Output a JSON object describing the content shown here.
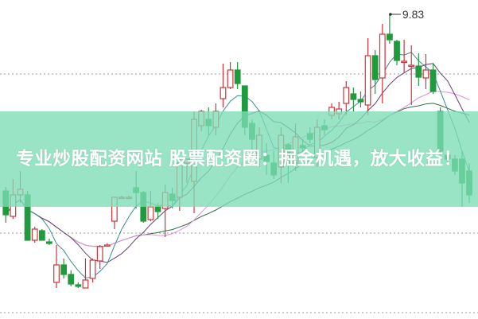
{
  "banner": {
    "title": "专业炒股配资网站 股票配资圈：掘金机遇，放大收益！"
  },
  "chart_data": {
    "type": "candlestick",
    "high_marker": "9.83",
    "colors": {
      "up": "#d0343a",
      "down": "#1f9a3c",
      "ma5": "#3b8c94",
      "ma10": "#6a3f72",
      "ma20": "#e08ee0",
      "ma30": "#2e6e3a"
    },
    "grid": "dotted horizontal",
    "candles": [
      [
        7.61,
        7.66,
        7.21,
        7.31
      ],
      [
        7.29,
        7.76,
        7.26,
        7.56
      ],
      [
        7.56,
        7.86,
        7.46,
        7.63
      ],
      [
        7.56,
        7.61,
        6.99,
        6.99
      ],
      [
        6.99,
        7.16,
        6.96,
        7.13
      ],
      [
        7.11,
        7.13,
        6.99,
        6.99
      ],
      [
        6.97,
        7.01,
        6.93,
        6.95
      ],
      [
        6.46,
        6.93,
        6.39,
        6.68
      ],
      [
        6.68,
        6.76,
        6.51,
        6.56
      ],
      [
        6.56,
        6.61,
        6.41,
        6.44
      ],
      [
        6.43,
        6.46,
        6.39,
        6.41
      ],
      [
        6.39,
        6.76,
        6.39,
        6.49
      ],
      [
        6.51,
        6.76,
        6.46,
        6.74
      ],
      [
        6.73,
        6.93,
        6.63,
        6.91
      ],
      [
        6.93,
        6.95,
        6.91,
        6.93
      ],
      [
        7.23,
        7.53,
        7.13,
        7.53
      ],
      [
        7.53,
        7.55,
        7.51,
        7.53
      ],
      [
        7.53,
        7.55,
        7.51,
        7.53
      ],
      [
        7.65,
        7.86,
        7.39,
        7.59
      ],
      [
        7.59,
        7.61,
        7.21,
        7.23
      ],
      [
        7.25,
        7.61,
        7.23,
        7.41
      ],
      [
        7.41,
        7.46,
        7.26,
        7.35
      ],
      [
        7.39,
        7.69,
        7.03,
        7.59
      ],
      [
        7.57,
        7.65,
        7.39,
        7.49
      ],
      [
        7.53,
        8.01,
        7.36,
        7.96
      ],
      [
        7.96,
        8.01,
        7.71,
        8.01
      ],
      [
        7.73,
        8.61,
        7.33,
        8.51
      ],
      [
        8.43,
        8.63,
        8.36,
        8.61
      ],
      [
        8.51,
        8.66,
        8.31,
        8.43
      ],
      [
        8.41,
        8.71,
        8.31,
        8.61
      ],
      [
        8.77,
        9.21,
        8.66,
        8.91
      ],
      [
        8.91,
        9.23,
        8.89,
        9.13
      ],
      [
        9.13,
        9.23,
        8.89,
        8.96
      ],
      [
        8.93,
        8.93,
        8.31,
        8.41
      ],
      [
        8.46,
        8.51,
        8.11,
        8.26
      ],
      [
        8.01,
        8.41,
        7.91,
        8.31
      ],
      [
        8.06,
        8.21,
        7.81,
        7.98
      ],
      [
        7.96,
        8.11,
        7.76,
        7.81
      ],
      [
        7.91,
        8.41,
        7.71,
        8.31
      ],
      [
        8.19,
        8.21,
        7.71,
        7.96
      ],
      [
        7.96,
        8.46,
        7.86,
        8.29
      ],
      [
        8.18,
        8.26,
        8.11,
        8.15
      ],
      [
        8.33,
        8.41,
        8.21,
        8.26
      ],
      [
        8.03,
        8.51,
        7.91,
        8.41
      ],
      [
        8.43,
        8.51,
        8.31,
        8.38
      ],
      [
        8.56,
        8.71,
        8.51,
        8.66
      ],
      [
        8.58,
        8.73,
        8.51,
        8.64
      ],
      [
        8.71,
        8.99,
        8.56,
        8.91
      ],
      [
        8.83,
        8.91,
        8.61,
        8.76
      ],
      [
        8.76,
        8.86,
        8.66,
        8.73
      ],
      [
        8.69,
        9.53,
        8.56,
        9.31
      ],
      [
        9.31,
        9.38,
        8.83,
        9.01
      ],
      [
        9.03,
        9.71,
        8.71,
        9.58
      ],
      [
        9.58,
        9.83,
        9.46,
        9.51
      ],
      [
        9.49,
        9.51,
        9.19,
        9.25
      ],
      [
        9.23,
        9.51,
        9.09,
        9.24
      ],
      [
        9.19,
        9.44,
        8.69,
        9.19
      ],
      [
        9.18,
        9.34,
        8.93,
        9.04
      ],
      [
        9.03,
        9.33,
        8.89,
        9.13
      ],
      [
        9.13,
        9.21,
        8.83,
        8.86
      ],
      [
        8.61,
        8.66,
        8.06,
        8.11
      ],
      [
        8.06,
        8.11,
        7.96,
        8.01
      ],
      [
        8.01,
        8.06,
        7.81,
        7.86
      ],
      [
        8.01,
        8.11,
        7.41,
        7.71
      ],
      [
        7.86,
        7.96,
        7.46,
        7.56
      ]
    ]
  }
}
